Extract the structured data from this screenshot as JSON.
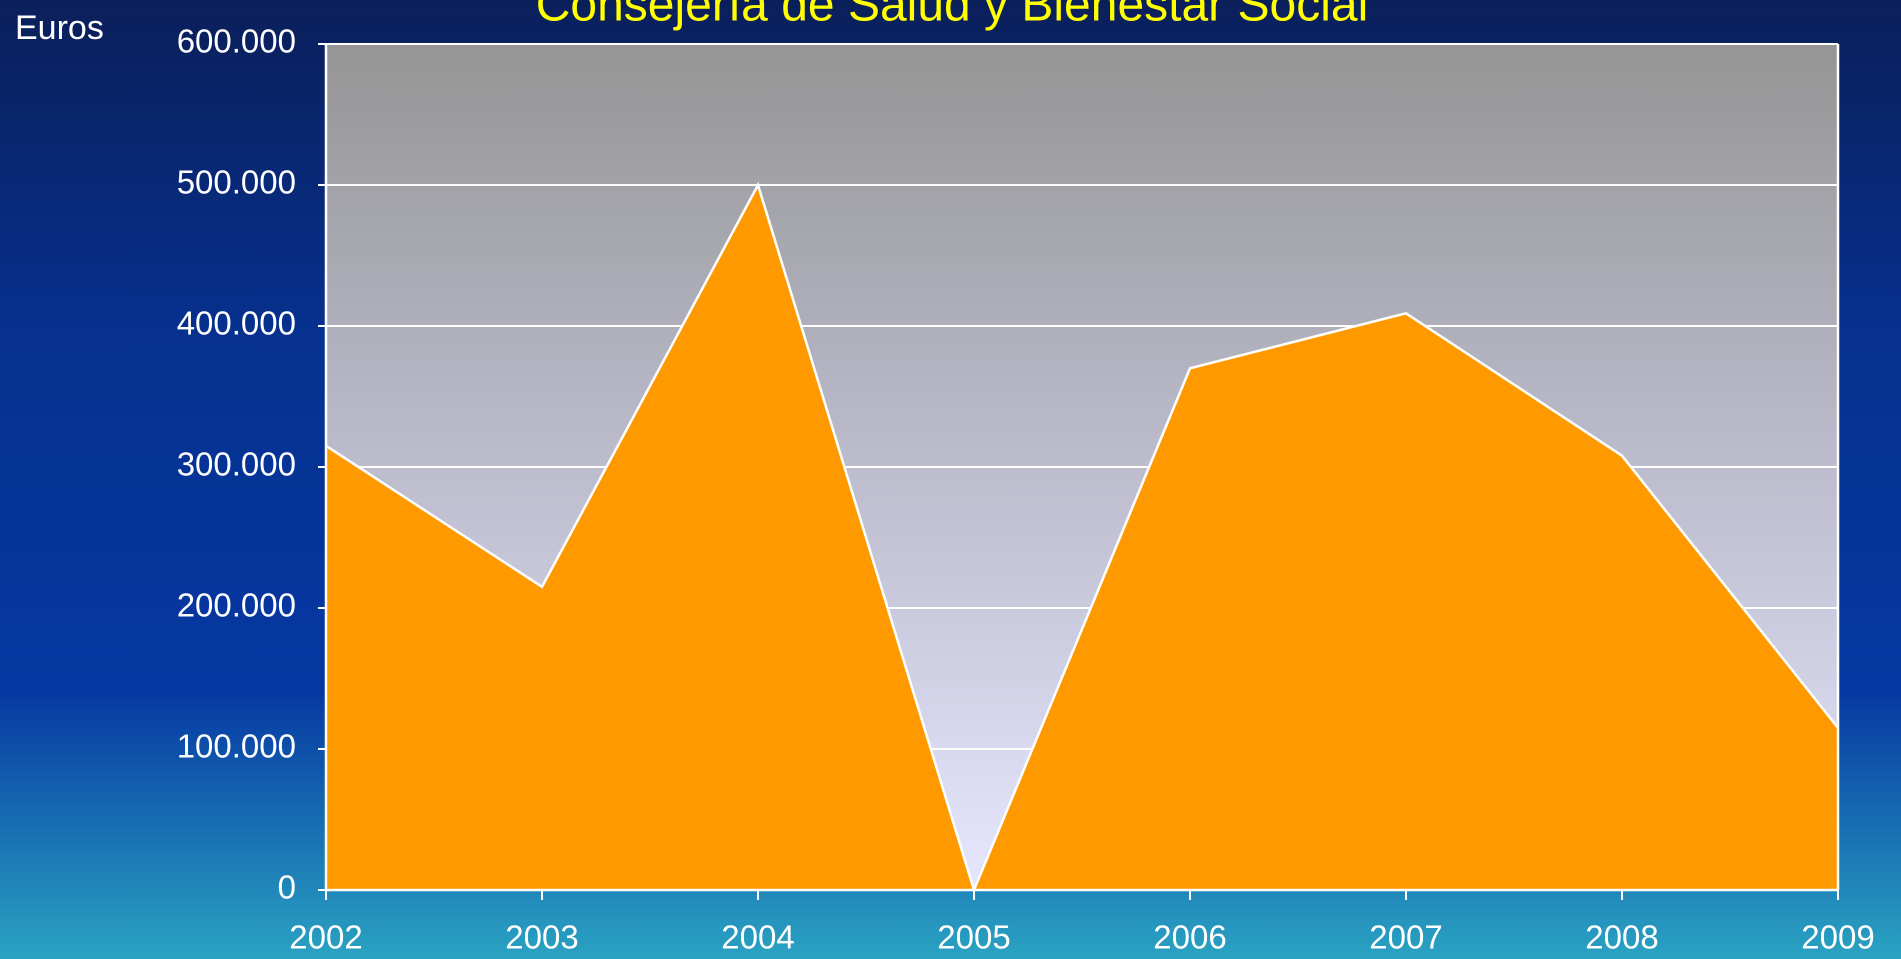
{
  "chart_data": {
    "type": "area",
    "title": "Consejería de Salud y Bienestar Social",
    "y_label": "Euros",
    "categories": [
      "2002",
      "2003",
      "2004",
      "2005",
      "2006",
      "2007",
      "2008",
      "2009"
    ],
    "values": [
      315000,
      215000,
      500000,
      0,
      370000,
      409000,
      308000,
      115000
    ],
    "color": "#ff9900",
    "ylim": [
      0,
      600000
    ],
    "yticks": [
      0,
      {
        "value": 100000,
        "label": "100.000"
      },
      {
        "value": 200000,
        "label": "200.000"
      },
      {
        "value": 300000,
        "label": "300.000"
      },
      {
        "value": 400000,
        "label": "400.000"
      },
      {
        "value": 500000,
        "label": "500.000"
      },
      {
        "value": 600000,
        "label": "600.000"
      }
    ],
    "grid": true
  }
}
